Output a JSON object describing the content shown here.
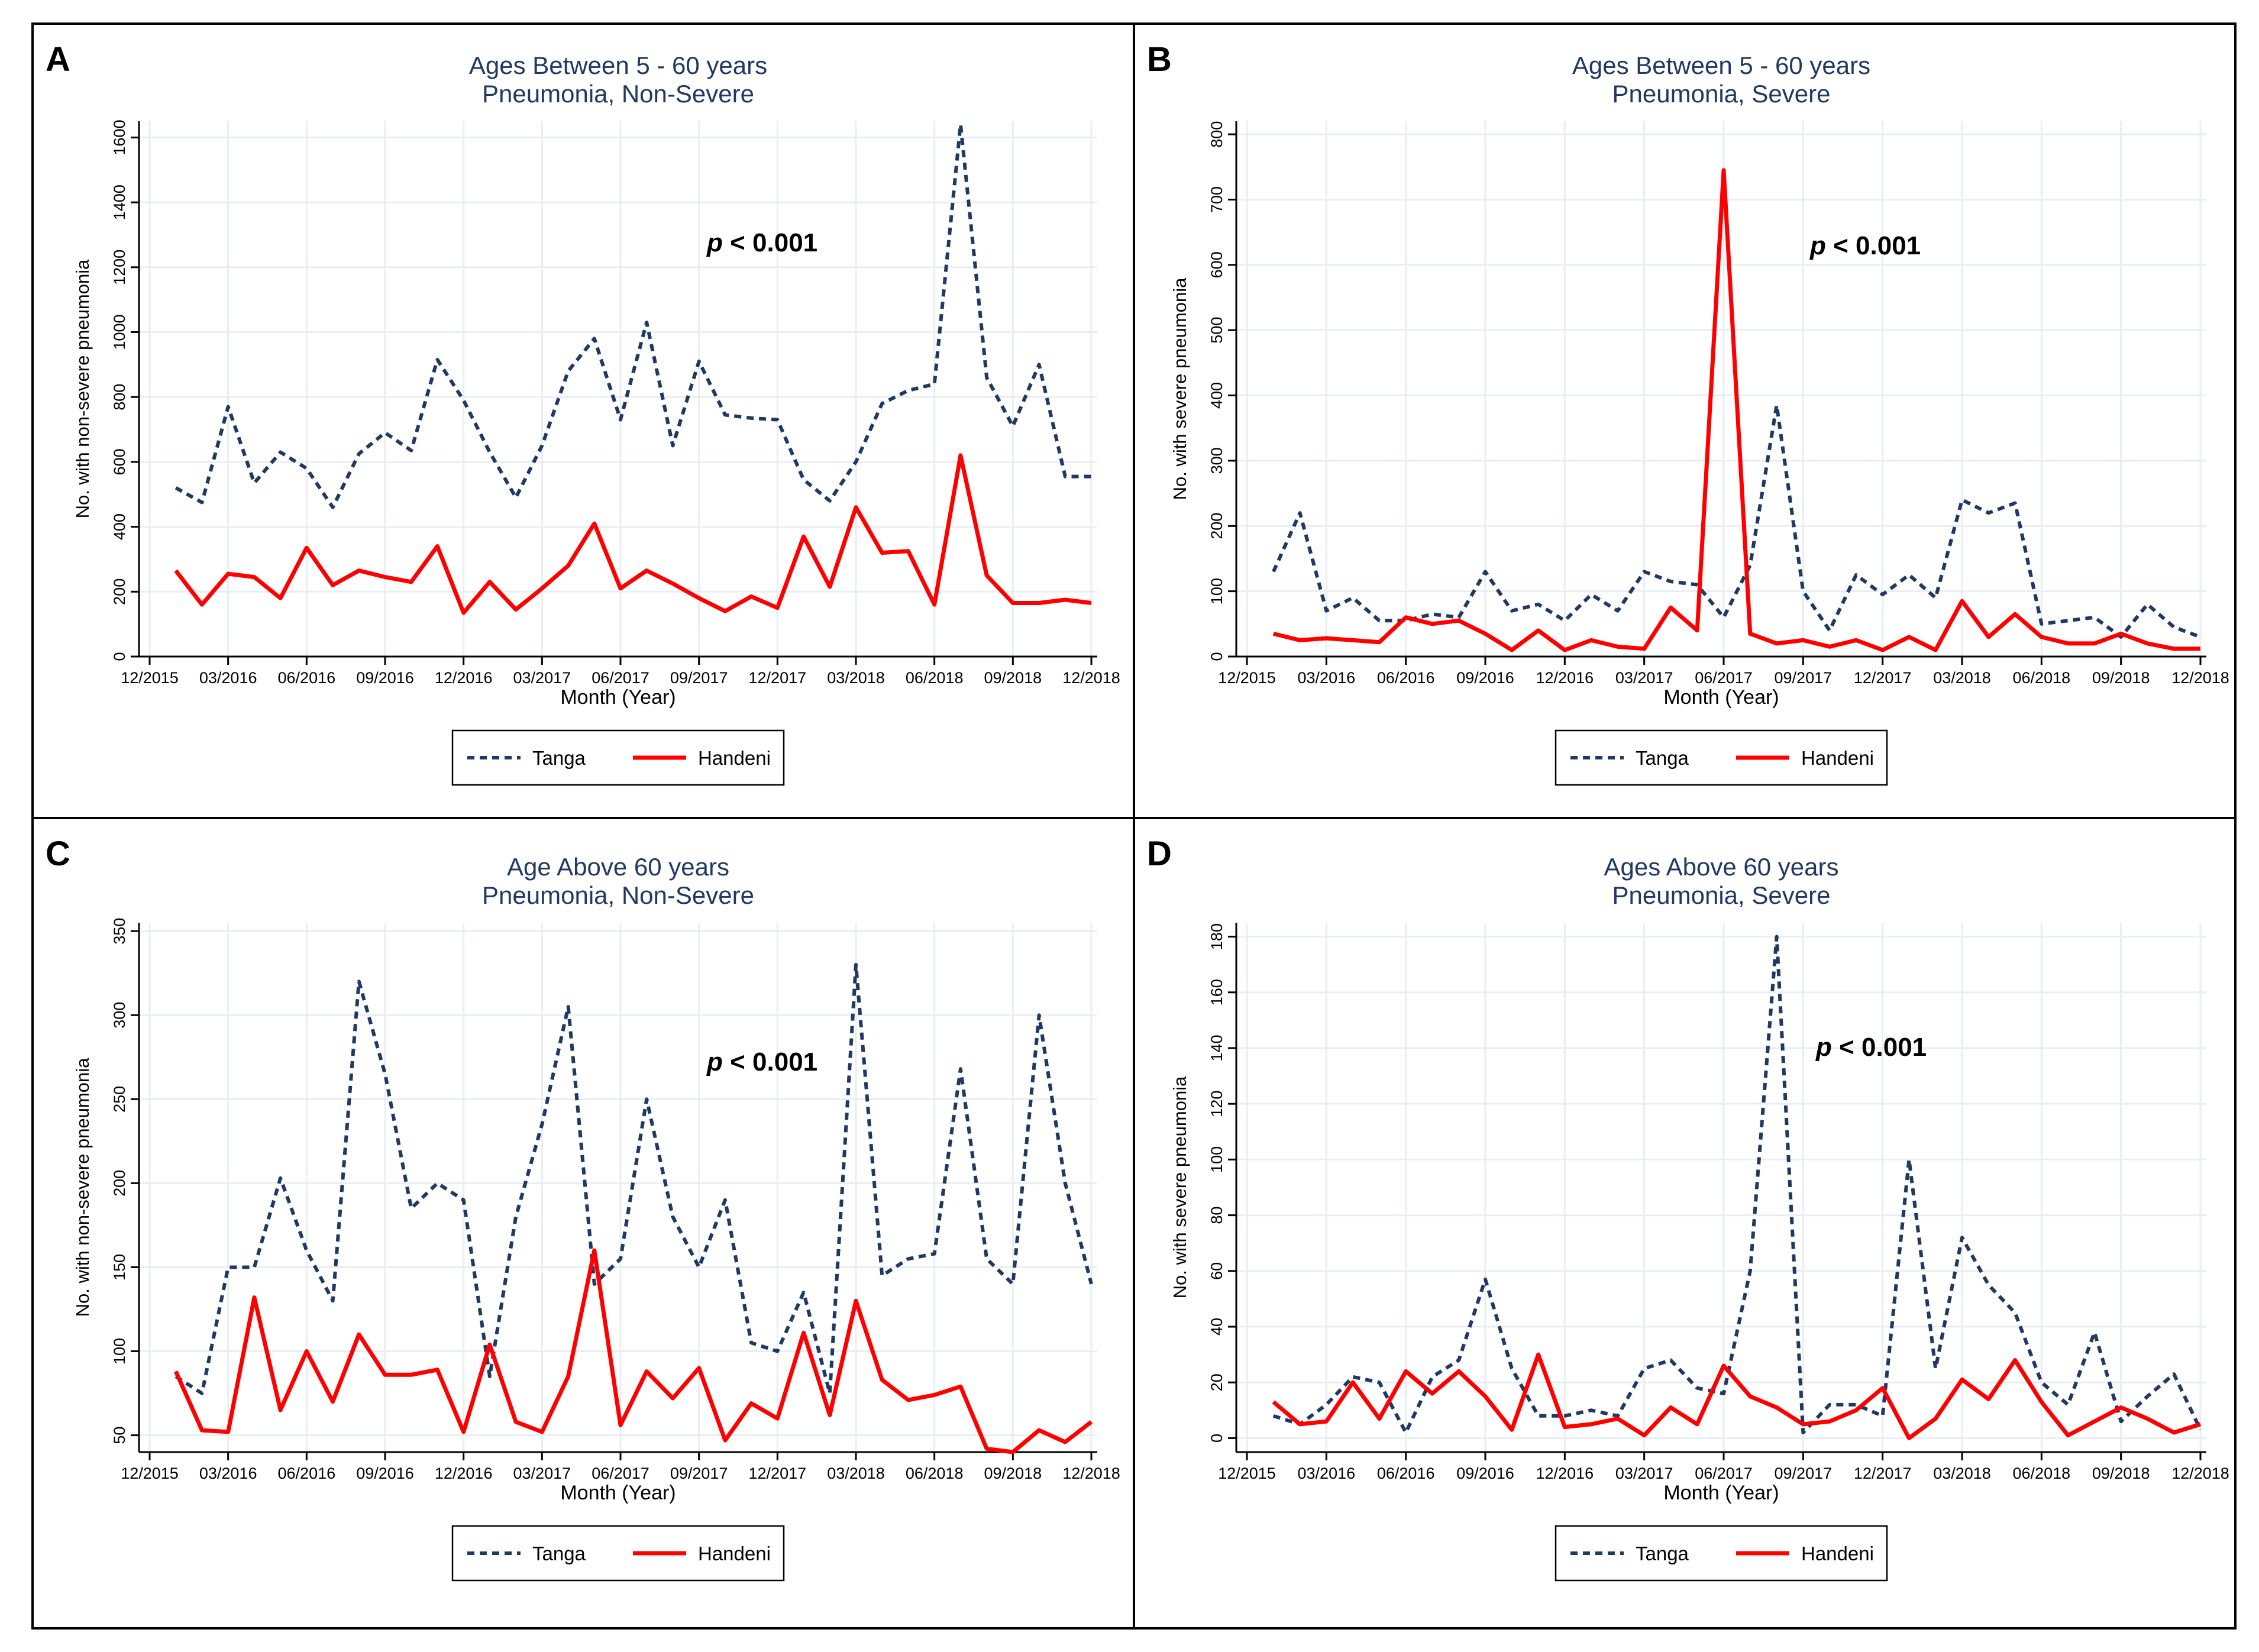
{
  "chart_data": [
    {
      "type": "line",
      "panel": "A",
      "title": "Ages Between 5 - 60 years",
      "subtitle": "Pneumonia, Non-Severe",
      "xlabel": "Month (Year)",
      "ylabel": "No. with non-severe pneumonia",
      "ylim": [
        0,
        1650
      ],
      "yticks": [
        0,
        200,
        400,
        600,
        800,
        1000,
        1200,
        1400,
        1600
      ],
      "xticks": [
        "12/2015",
        "03/2016",
        "06/2016",
        "09/2016",
        "12/2016",
        "03/2017",
        "06/2017",
        "09/2017",
        "12/2017",
        "03/2018",
        "06/2018",
        "09/2018",
        "12/2018"
      ],
      "annotation": {
        "italic": "p",
        "text": " < 0.001"
      },
      "legend": [
        "Tanga",
        "Handeni"
      ],
      "series": [
        {
          "name": "Tanga",
          "color": "#1f3864",
          "style": "dashed",
          "values": [
            520,
            475,
            770,
            535,
            630,
            580,
            460,
            625,
            690,
            635,
            915,
            790,
            630,
            490,
            650,
            880,
            980,
            730,
            1030,
            650,
            910,
            745,
            735,
            730,
            545,
            480,
            600,
            780,
            820,
            840,
            1640,
            860,
            710,
            900,
            555,
            555
          ]
        },
        {
          "name": "Handeni",
          "color": "#ff0000",
          "style": "solid",
          "values": [
            265,
            160,
            255,
            245,
            180,
            335,
            220,
            265,
            245,
            230,
            340,
            135,
            230,
            145,
            210,
            280,
            410,
            210,
            265,
            225,
            180,
            140,
            185,
            150,
            370,
            215,
            460,
            320,
            325,
            160,
            620,
            250,
            165,
            165,
            175,
            165
          ]
        }
      ]
    },
    {
      "type": "line",
      "panel": "B",
      "title": "Ages Between 5 - 60 years",
      "subtitle": "Pneumonia, Severe",
      "xlabel": "Month (Year)",
      "ylabel": "No. with severe pneumonia",
      "ylim": [
        0,
        820
      ],
      "yticks": [
        0,
        100,
        200,
        300,
        400,
        500,
        600,
        700,
        800
      ],
      "xticks": [
        "12/2015",
        "03/2016",
        "06/2016",
        "09/2016",
        "12/2016",
        "03/2017",
        "06/2017",
        "09/2017",
        "12/2017",
        "03/2018",
        "06/2018",
        "09/2018",
        "12/2018"
      ],
      "annotation": {
        "italic": "p",
        "text": " < 0.001"
      },
      "legend": [
        "Tanga",
        "Handeni"
      ],
      "series": [
        {
          "name": "Tanga",
          "color": "#1f3864",
          "style": "dashed",
          "values": [
            130,
            220,
            70,
            90,
            55,
            55,
            65,
            60,
            130,
            70,
            80,
            55,
            95,
            70,
            130,
            115,
            110,
            60,
            140,
            385,
            100,
            40,
            125,
            95,
            125,
            90,
            240,
            220,
            235,
            50,
            55,
            60,
            30,
            80,
            45,
            30
          ]
        },
        {
          "name": "Handeni",
          "color": "#ff0000",
          "style": "solid",
          "values": [
            35,
            25,
            28,
            25,
            22,
            60,
            50,
            55,
            35,
            10,
            40,
            10,
            25,
            15,
            12,
            75,
            40,
            745,
            35,
            20,
            25,
            15,
            25,
            10,
            30,
            10,
            85,
            30,
            65,
            30,
            20,
            20,
            35,
            20,
            12,
            12
          ]
        }
      ]
    },
    {
      "type": "line",
      "panel": "C",
      "title": "Age Above 60 years",
      "subtitle": "Pneumonia, Non-Severe",
      "xlabel": "Month (Year)",
      "ylabel": "No. with non-severe pneumonia",
      "ylim": [
        40,
        355
      ],
      "yticks": [
        50,
        100,
        150,
        200,
        250,
        300,
        350
      ],
      "xticks": [
        "12/2015",
        "03/2016",
        "06/2016",
        "09/2016",
        "12/2016",
        "03/2017",
        "06/2017",
        "09/2017",
        "12/2017",
        "03/2018",
        "06/2018",
        "09/2018",
        "12/2018"
      ],
      "annotation": {
        "italic": "p",
        "text": " < 0.001"
      },
      "legend": [
        "Tanga",
        "Handeni"
      ],
      "series": [
        {
          "name": "Tanga",
          "color": "#1f3864",
          "style": "dashed",
          "values": [
            85,
            75,
            150,
            150,
            203,
            160,
            130,
            320,
            265,
            185,
            200,
            190,
            85,
            180,
            235,
            305,
            140,
            155,
            250,
            180,
            150,
            190,
            105,
            100,
            135,
            75,
            330,
            145,
            155,
            158,
            268,
            155,
            140,
            300,
            200,
            140
          ]
        },
        {
          "name": "Handeni",
          "color": "#ff0000",
          "style": "solid",
          "values": [
            88,
            53,
            52,
            132,
            65,
            100,
            70,
            110,
            86,
            86,
            89,
            52,
            104,
            58,
            52,
            85,
            160,
            56,
            88,
            72,
            90,
            47,
            69,
            60,
            111,
            62,
            130,
            83,
            71,
            74,
            79,
            42,
            40,
            53,
            46,
            58
          ]
        }
      ]
    },
    {
      "type": "line",
      "panel": "D",
      "title": "Ages Above 60 years",
      "subtitle": "Pneumonia, Severe",
      "xlabel": "Month (Year)",
      "ylabel": "No. with severe pneumonia",
      "ylim": [
        -5,
        185
      ],
      "yticks": [
        0,
        20,
        40,
        60,
        80,
        100,
        120,
        140,
        160,
        180
      ],
      "xticks": [
        "12/2015",
        "03/2016",
        "06/2016",
        "09/2016",
        "12/2016",
        "03/2017",
        "06/2017",
        "09/2017",
        "12/2017",
        "03/2018",
        "06/2018",
        "09/2018",
        "12/2018"
      ],
      "annotation": {
        "italic": "p",
        "text": " < 0.001"
      },
      "legend": [
        "Tanga",
        "Handeni"
      ],
      "series": [
        {
          "name": "Tanga",
          "color": "#1f3864",
          "style": "dashed",
          "values": [
            8,
            5,
            12,
            22,
            20,
            2,
            22,
            28,
            57,
            25,
            8,
            8,
            10,
            8,
            25,
            28,
            18,
            16,
            60,
            180,
            2,
            12,
            12,
            8,
            100,
            25,
            72,
            55,
            45,
            20,
            12,
            38,
            6,
            15,
            23,
            3
          ]
        },
        {
          "name": "Handeni",
          "color": "#ff0000",
          "style": "solid",
          "values": [
            13,
            5,
            6,
            20,
            7,
            24,
            16,
            24,
            15,
            3,
            30,
            4,
            5,
            7,
            1,
            11,
            5,
            26,
            15,
            11,
            5,
            6,
            10,
            18,
            0,
            7,
            21,
            14,
            28,
            13,
            1,
            6,
            11,
            7,
            2,
            5
          ]
        }
      ]
    }
  ]
}
